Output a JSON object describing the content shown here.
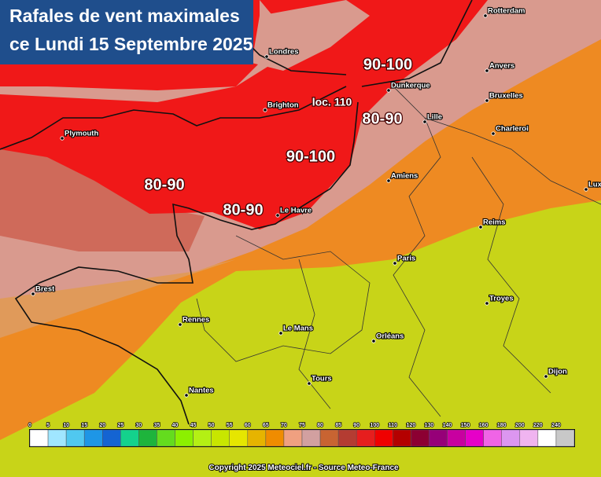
{
  "header": {
    "title_line1": "Rafales de vent maximales",
    "title_line2": "ce Lundi 15 Septembre 2025"
  },
  "cities": [
    "Rotterdam",
    "Londres",
    "Anvers",
    "Dunkerque",
    "Bruxelles",
    "Brighton",
    "Lille",
    "Charleroi",
    "Plymouth",
    "Amiens",
    "Lux",
    "Le Havre",
    "Reims",
    "Paris",
    "Brest",
    "Troyes",
    "Rennes",
    "Le Mans",
    "Orléans",
    "Dijon",
    "Tours",
    "Nantes"
  ],
  "annotations": [
    "90-100",
    "loc. 110",
    "80-90",
    "90-100",
    "80-90",
    "80-90"
  ],
  "legend": {
    "labels": [
      0,
      5,
      10,
      15,
      20,
      25,
      30,
      35,
      40,
      45,
      50,
      55,
      60,
      65,
      70,
      75,
      80,
      85,
      90,
      100,
      110,
      120,
      130,
      140,
      150,
      160,
      180,
      200,
      220,
      240
    ],
    "colors": [
      "#ffffff",
      "#a0e6ff",
      "#50c8f0",
      "#1e96e6",
      "#1464d2",
      "#14d28c",
      "#1eb43c",
      "#64dc1e",
      "#8cf000",
      "#b4f014",
      "#c8e600",
      "#e6e600",
      "#e6b400",
      "#f08c00",
      "#f0a080",
      "#d2a0a0",
      "#c86432",
      "#b43c32",
      "#e61e1e",
      "#f00000",
      "#b40000",
      "#8c0032",
      "#960078",
      "#c800a0",
      "#e600c8",
      "#f064e6",
      "#dc96f0",
      "#f0b4f0",
      "#ffffff",
      "#c8c8c8"
    ]
  },
  "footer": "Copyright 2025 Meteociel.fr - Source Meteo-France"
}
